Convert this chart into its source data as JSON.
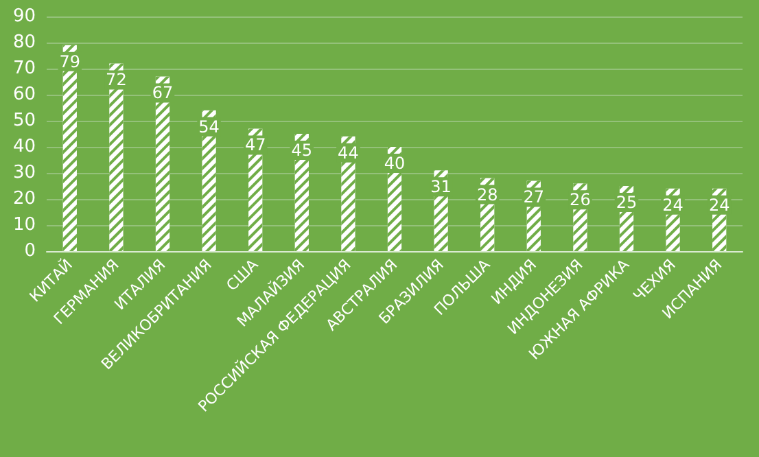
{
  "chart_data": {
    "type": "bar",
    "categories": [
      "КИТАЙ",
      "ГЕРМАНИЯ",
      "ИТАЛИЯ",
      "ВЕЛИКОБРИТАНИЯ",
      "США",
      "МАЛАЙЗИЯ",
      "РОССИЙСКАЯ ФЕДЕРАЦИЯ",
      "АВСТРАЛИЯ",
      "БРАЗИЛИЯ",
      "ПОЛЬША",
      "ИНДИЯ",
      "ИНДОНЕЗИЯ",
      "ЮЖНАЯ АФРИКА",
      "ЧЕХИЯ",
      "ИСПАНИЯ"
    ],
    "values": [
      79,
      72,
      67,
      54,
      47,
      45,
      44,
      40,
      31,
      28,
      27,
      26,
      25,
      24,
      24
    ],
    "color": "#ffffff",
    "ylim": [
      0,
      90
    ],
    "yticks": [
      0,
      10,
      20,
      30,
      40,
      50,
      60,
      70,
      80,
      90
    ],
    "grid": "y",
    "data_labels": true
  }
}
